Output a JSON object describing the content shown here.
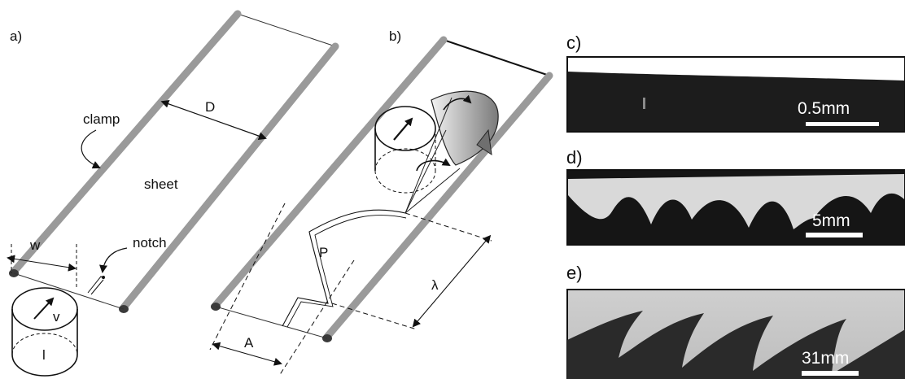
{
  "panels": {
    "a": {
      "label": "a)",
      "labels": {
        "clamp": "clamp",
        "sheet": "sheet",
        "notch": "notch",
        "D": "D",
        "w": "w",
        "v": "v",
        "l": "l"
      }
    },
    "b": {
      "label": "b)",
      "labels": {
        "P": "P",
        "lambda": "λ",
        "A": "A"
      }
    },
    "c": {
      "label": "c)",
      "scale_bar": "0.5mm"
    },
    "d": {
      "label": "d)",
      "scale_bar": "5mm"
    },
    "e": {
      "label": "e)",
      "scale_bar": "31mm"
    }
  },
  "colors": {
    "clamp_rod": "#9a9a9a",
    "rod_end": "#3a3a3a",
    "line": "#111111",
    "photo_c_bg": "#1c1c1c",
    "photo_d_light": "#d9d9d9",
    "photo_d_dark": "#151515",
    "photo_e_light": "#c9c9c9",
    "photo_e_dark": "#2a2a2a"
  }
}
